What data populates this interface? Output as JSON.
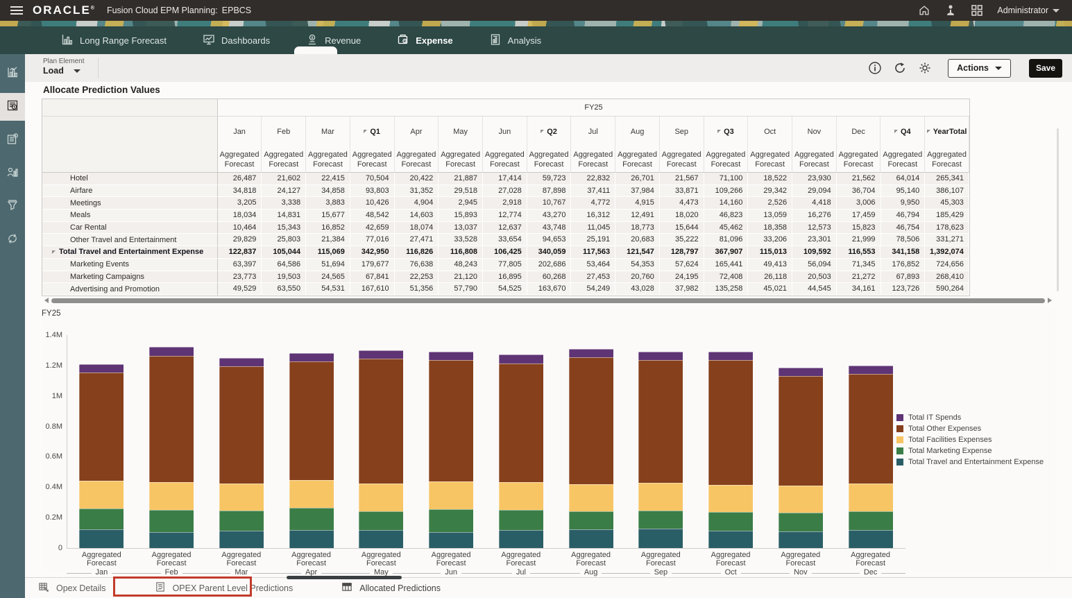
{
  "topbar": {
    "brand": "ORACLE",
    "product": "Fusion Cloud EPM Planning:",
    "app": "EPBCS",
    "user": "Administrator",
    "icons": [
      "home-icon",
      "person-icon",
      "apps-grid-icon"
    ]
  },
  "navbar": {
    "tabs": [
      {
        "label": "Long Range Forecast",
        "icon": "bar-chart-icon",
        "active": false
      },
      {
        "label": "Dashboards",
        "icon": "dashboard-icon",
        "active": false
      },
      {
        "label": "Revenue",
        "icon": "revenue-icon",
        "active": false
      },
      {
        "label": "Expense",
        "icon": "expense-icon",
        "active": true
      },
      {
        "label": "Analysis",
        "icon": "analysis-icon",
        "active": false
      }
    ]
  },
  "sidebar": {
    "items": [
      {
        "icon": "analytics-icon",
        "active": false
      },
      {
        "icon": "forms-icon",
        "active": true
      },
      {
        "icon": "application-icon",
        "active": false
      },
      {
        "icon": "workforce-report-icon",
        "active": false
      },
      {
        "icon": "filter-funnel-icon",
        "active": false
      },
      {
        "icon": "sync-rules-icon",
        "active": false
      }
    ]
  },
  "toolbar": {
    "pov_label": "Plan Element",
    "pov_value": "Load",
    "icons": [
      "info-icon",
      "refresh-icon",
      "settings-gear-icon"
    ],
    "actions_label": "Actions",
    "save_label": "Save"
  },
  "page_title": "Allocate Prediction Values",
  "grid": {
    "span_header": "FY25",
    "sub_header_line1": "Aggregated",
    "sub_header_line2": "Forecast",
    "columns": [
      {
        "label": "Jan",
        "type": "month"
      },
      {
        "label": "Feb",
        "type": "month"
      },
      {
        "label": "Mar",
        "type": "month"
      },
      {
        "label": "Q1",
        "type": "quarter"
      },
      {
        "label": "Apr",
        "type": "month"
      },
      {
        "label": "May",
        "type": "month"
      },
      {
        "label": "Jun",
        "type": "month"
      },
      {
        "label": "Q2",
        "type": "quarter"
      },
      {
        "label": "Jul",
        "type": "month"
      },
      {
        "label": "Aug",
        "type": "month"
      },
      {
        "label": "Sep",
        "type": "month"
      },
      {
        "label": "Q3",
        "type": "quarter"
      },
      {
        "label": "Oct",
        "type": "month"
      },
      {
        "label": "Nov",
        "type": "month"
      },
      {
        "label": "Dec",
        "type": "month"
      },
      {
        "label": "Q4",
        "type": "quarter"
      },
      {
        "label": "YearTotal",
        "type": "quarter"
      }
    ],
    "rows": [
      {
        "label": "Hotel",
        "total": false,
        "values": [
          "26,487",
          "21,602",
          "22,415",
          "70,504",
          "20,422",
          "21,887",
          "17,414",
          "59,723",
          "22,832",
          "26,701",
          "21,567",
          "71,100",
          "18,522",
          "23,930",
          "21,562",
          "64,014",
          "265,341"
        ]
      },
      {
        "label": "Airfare",
        "total": false,
        "values": [
          "34,818",
          "24,127",
          "34,858",
          "93,803",
          "31,352",
          "29,518",
          "27,028",
          "87,898",
          "37,411",
          "37,984",
          "33,871",
          "109,266",
          "29,342",
          "29,094",
          "36,704",
          "95,140",
          "386,107"
        ]
      },
      {
        "label": "Meetings",
        "total": false,
        "values": [
          "3,205",
          "3,338",
          "3,883",
          "10,426",
          "4,904",
          "2,945",
          "2,918",
          "10,767",
          "4,772",
          "4,915",
          "4,473",
          "14,160",
          "2,526",
          "4,418",
          "3,006",
          "9,950",
          "45,303"
        ]
      },
      {
        "label": "Meals",
        "total": false,
        "values": [
          "18,034",
          "14,831",
          "15,677",
          "48,542",
          "14,603",
          "15,893",
          "12,774",
          "43,270",
          "16,312",
          "12,491",
          "18,020",
          "46,823",
          "13,059",
          "16,276",
          "17,459",
          "46,794",
          "185,429"
        ]
      },
      {
        "label": "Car Rental",
        "total": false,
        "values": [
          "10,464",
          "15,343",
          "16,852",
          "42,659",
          "18,074",
          "13,037",
          "12,637",
          "43,748",
          "11,045",
          "18,773",
          "15,644",
          "45,462",
          "18,358",
          "12,573",
          "15,823",
          "46,754",
          "178,623"
        ]
      },
      {
        "label": "Other Travel and Entertainment",
        "total": false,
        "values": [
          "29,829",
          "25,803",
          "21,384",
          "77,016",
          "27,471",
          "33,528",
          "33,654",
          "94,653",
          "25,191",
          "20,683",
          "35,222",
          "81,096",
          "33,206",
          "23,301",
          "21,999",
          "78,506",
          "331,271"
        ]
      },
      {
        "label": "Total Travel and Entertainment Expense",
        "total": true,
        "values": [
          "122,837",
          "105,044",
          "115,069",
          "342,950",
          "116,826",
          "116,808",
          "106,425",
          "340,059",
          "117,563",
          "121,547",
          "128,797",
          "367,907",
          "115,013",
          "109,592",
          "116,553",
          "341,158",
          "1,392,074"
        ]
      },
      {
        "label": "Marketing Events",
        "total": false,
        "values": [
          "63,397",
          "64,586",
          "51,694",
          "179,677",
          "76,638",
          "48,243",
          "77,805",
          "202,686",
          "53,464",
          "54,353",
          "57,624",
          "165,441",
          "49,413",
          "56,094",
          "71,345",
          "176,852",
          "724,656"
        ]
      },
      {
        "label": "Marketing Campaigns",
        "total": false,
        "values": [
          "23,773",
          "19,503",
          "24,565",
          "67,841",
          "22,253",
          "21,120",
          "16,895",
          "60,268",
          "27,453",
          "20,760",
          "24,195",
          "72,408",
          "26,118",
          "20,503",
          "21,272",
          "67,893",
          "268,410"
        ]
      },
      {
        "label": "Advertising and Promotion",
        "total": false,
        "values": [
          "49,529",
          "63,550",
          "54,531",
          "167,610",
          "51,356",
          "57,790",
          "54,525",
          "163,670",
          "54,249",
          "43,028",
          "37,982",
          "135,258",
          "45,021",
          "44,545",
          "34,161",
          "123,726",
          "590,264"
        ]
      }
    ]
  },
  "chart_data": {
    "type": "bar",
    "stacked": true,
    "title": "FY25",
    "x_group_label": "Aggregated Forecast",
    "categories": [
      "Jan",
      "Feb",
      "Mar",
      "Apr",
      "May",
      "Jun",
      "Jul",
      "Aug",
      "Sep",
      "Oct",
      "Nov",
      "Dec"
    ],
    "series": [
      {
        "name": "Total Travel and Entertainment Expense",
        "color": "#2a5e66",
        "values": [
          122837,
          105044,
          115069,
          116826,
          116808,
          106425,
          117563,
          121547,
          128797,
          115013,
          109592,
          116553
        ]
      },
      {
        "name": "Total Marketing Expense",
        "color": "#3b7d46",
        "values": [
          136699,
          147639,
          130790,
          150247,
          127153,
          149225,
          135166,
          118141,
          119801,
          120552,
          121142,
          126778
        ]
      },
      {
        "name": "Total Facilities Expenses",
        "color": "#f8c565",
        "values": [
          185000,
          180000,
          180000,
          180000,
          180000,
          182000,
          180000,
          178000,
          180000,
          180000,
          178000,
          180000
        ]
      },
      {
        "name": "Total Other Expenses",
        "color": "#86401c",
        "values": [
          710000,
          832000,
          769000,
          778000,
          821000,
          798000,
          782000,
          835000,
          806000,
          819000,
          724000,
          721000
        ]
      },
      {
        "name": "Total IT Spends",
        "color": "#5f3475",
        "values": [
          55000,
          58000,
          56000,
          57000,
          57000,
          55000,
          56000,
          57000,
          56000,
          57000,
          55000,
          56000
        ]
      }
    ],
    "legend_order_top_to_bottom": [
      "Total IT Spends",
      "Total Other Expenses",
      "Total Facilities Expenses",
      "Total Marketing Expense",
      "Total Travel and Entertainment Expense"
    ],
    "ylim": [
      0,
      1400000
    ],
    "yticks": [
      "0",
      "0.2M",
      "0.4M",
      "0.6M",
      "0.8M",
      "1M",
      "1.2M",
      "1.4M"
    ],
    "grid_lines": false,
    "legend_position": "right"
  },
  "bottombar": {
    "tabs": [
      {
        "label": "Opex Details",
        "icon": "grid-sheet-icon",
        "active": false,
        "annotated": false
      },
      {
        "label": "OPEX Parent Level Predictions",
        "icon": "prediction-form-icon",
        "active": false,
        "annotated": true
      },
      {
        "label": "Allocated Predictions",
        "icon": "table-icon",
        "active": true,
        "annotated": false
      }
    ],
    "annotation_color": "#c23b2a"
  }
}
